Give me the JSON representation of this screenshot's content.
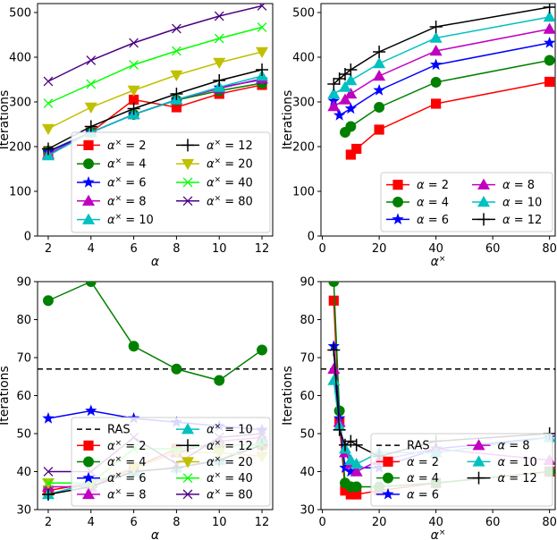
{
  "colors": {
    "red": "#ff0000",
    "green": "#008000",
    "blue": "#0000ff",
    "magenta": "#c000c0",
    "cyan": "#00c0c0",
    "black": "#000000",
    "olive": "#c0c000",
    "lime": "#00ff00",
    "indigo": "#4b0082"
  },
  "chart_data": [
    {
      "type": "line",
      "xlabel": "α",
      "ylabel": "Iterations",
      "xlim": [
        1.5,
        12.5
      ],
      "ylim": [
        0,
        520
      ],
      "xticks": [
        2,
        4,
        6,
        8,
        10,
        12
      ],
      "yticks": [
        0,
        100,
        200,
        300,
        400,
        500
      ],
      "x": [
        2,
        4,
        6,
        8,
        10,
        12
      ],
      "legend": {
        "position": "lower-right",
        "ncol": 2
      },
      "series": [
        {
          "name": "α× = 2",
          "color": "red",
          "marker": "square",
          "values": [
            190,
            232,
            305,
            288,
            318,
            338
          ]
        },
        {
          "name": "α× = 4",
          "color": "green",
          "marker": "circle",
          "values": [
            190,
            232,
            272,
            304,
            325,
            342
          ]
        },
        {
          "name": "α× = 6",
          "color": "blue",
          "marker": "star",
          "values": [
            188,
            232,
            272,
            305,
            332,
            350
          ]
        },
        {
          "name": "α× = 8",
          "color": "magenta",
          "marker": "triangle-up",
          "values": [
            183,
            232,
            272,
            305,
            330,
            352
          ]
        },
        {
          "name": "α× = 10",
          "color": "cyan",
          "marker": "triangle-up",
          "values": [
            180,
            232,
            272,
            305,
            333,
            358
          ]
        },
        {
          "name": "α× = 12",
          "color": "black",
          "marker": "plus",
          "values": [
            195,
            245,
            285,
            318,
            348,
            372
          ]
        },
        {
          "name": "α× = 20",
          "color": "olive",
          "marker": "triangle-down",
          "values": [
            240,
            288,
            326,
            360,
            388,
            412
          ]
        },
        {
          "name": "α× = 40",
          "color": "lime",
          "marker": "x",
          "values": [
            297,
            340,
            383,
            414,
            442,
            467
          ]
        },
        {
          "name": "α× = 80",
          "color": "indigo",
          "marker": "x",
          "values": [
            346,
            393,
            432,
            464,
            492,
            515
          ]
        }
      ]
    },
    {
      "type": "line",
      "xlabel": "α×",
      "ylabel": "Iterations",
      "xlim": [
        -0.5,
        82
      ],
      "ylim": [
        0,
        520
      ],
      "xticks": [
        0,
        20,
        40,
        60,
        80
      ],
      "yticks": [
        0,
        100,
        200,
        300,
        400,
        500
      ],
      "x": [
        4,
        6,
        8,
        10,
        12,
        20,
        40,
        80
      ],
      "legend": {
        "position": "lower-right",
        "ncol": 2
      },
      "series": [
        {
          "name": "α = 2",
          "color": "red",
          "marker": "square",
          "values": [
            null,
            null,
            null,
            182,
            195,
            238,
            296,
            345
          ]
        },
        {
          "name": "α = 4",
          "color": "green",
          "marker": "circle",
          "values": [
            null,
            null,
            232,
            245,
            null,
            288,
            344,
            393
          ]
        },
        {
          "name": "α = 6",
          "color": "blue",
          "marker": "star",
          "values": [
            302,
            270,
            null,
            285,
            null,
            326,
            383,
            432
          ]
        },
        {
          "name": "α = 8",
          "color": "magenta",
          "marker": "triangle-up",
          "values": [
            290,
            null,
            305,
            318,
            null,
            358,
            414,
            463
          ]
        },
        {
          "name": "α = 10",
          "color": "cyan",
          "marker": "triangle-up",
          "values": [
            318,
            null,
            333,
            348,
            null,
            386,
            443,
            490
          ]
        },
        {
          "name": "α = 12",
          "color": "black",
          "marker": "plus",
          "values": [
            340,
            352,
            362,
            372,
            null,
            412,
            468,
            512
          ]
        }
      ]
    },
    {
      "type": "line",
      "xlabel": "α",
      "ylabel": "Iterations",
      "xlim": [
        1.5,
        12.5
      ],
      "ylim": [
        30,
        90
      ],
      "xticks": [
        2,
        4,
        6,
        8,
        10,
        12
      ],
      "yticks": [
        30,
        40,
        50,
        60,
        70,
        80,
        90
      ],
      "x": [
        2,
        4,
        6,
        8,
        10,
        12
      ],
      "reference": {
        "name": "RAS",
        "value": 67
      },
      "legend": {
        "position": "lower-right",
        "ncol": 2
      },
      "series": [
        {
          "name": "α× = 2",
          "color": "red",
          "marker": "square",
          "values": [
            35,
            37,
            41,
            46,
            47,
            47
          ]
        },
        {
          "name": "α× = 4",
          "color": "green",
          "marker": "circle",
          "values": [
            85,
            90,
            73,
            67,
            64,
            72
          ]
        },
        {
          "name": "α× = 6",
          "color": "blue",
          "marker": "star",
          "values": [
            54,
            56,
            54,
            53,
            52,
            51
          ]
        },
        {
          "name": "α× = 8",
          "color": "magenta",
          "marker": "triangle-up",
          "values": [
            36,
            36,
            41,
            45,
            48,
            49
          ]
        },
        {
          "name": "α× = 10",
          "color": "cyan",
          "marker": "triangle-up",
          "values": [
            34,
            37,
            40,
            41,
            43,
            48
          ]
        },
        {
          "name": "α× = 12",
          "color": "black",
          "marker": "plus",
          "values": [
            34,
            36,
            40,
            41,
            43,
            47
          ]
        },
        {
          "name": "α× = 20",
          "color": "olive",
          "marker": "triangle-down",
          "values": [
            37,
            37,
            41,
            45,
            45,
            44
          ]
        },
        {
          "name": "α× = 40",
          "color": "lime",
          "marker": "x",
          "values": [
            37,
            37,
            46,
            46,
            47,
            47
          ]
        },
        {
          "name": "α× = 80",
          "color": "indigo",
          "marker": "x",
          "values": [
            40,
            40,
            49,
            42,
            49,
            50
          ]
        }
      ]
    },
    {
      "type": "line",
      "xlabel": "α×",
      "ylabel": "Iterations",
      "xlim": [
        -0.5,
        82
      ],
      "ylim": [
        30,
        90
      ],
      "xticks": [
        0,
        20,
        40,
        60,
        80
      ],
      "yticks": [
        30,
        40,
        50,
        60,
        70,
        80,
        90
      ],
      "x": [
        4,
        6,
        8,
        10,
        12,
        20,
        40,
        80
      ],
      "reference": {
        "name": "RAS",
        "value": 67
      },
      "legend": {
        "position": "lower-right",
        "ncol": 2
      },
      "series": [
        {
          "name": "α = 2",
          "color": "red",
          "marker": "square",
          "values": [
            85,
            53,
            35,
            34,
            34,
            35,
            37,
            40
          ]
        },
        {
          "name": "α = 4",
          "color": "green",
          "marker": "circle",
          "values": [
            90,
            56,
            37,
            36,
            36,
            36,
            37,
            40
          ]
        },
        {
          "name": "α = 6",
          "color": "blue",
          "marker": "star",
          "values": [
            73,
            54,
            41,
            40,
            41,
            41,
            46,
            49
          ]
        },
        {
          "name": "α = 8",
          "color": "magenta",
          "marker": "triangle-up",
          "values": [
            67,
            53,
            45,
            42,
            40,
            43,
            46,
            43
          ]
        },
        {
          "name": "α = 10",
          "color": "cyan",
          "marker": "triangle-up",
          "values": [
            64,
            52,
            46,
            43,
            42,
            45,
            45,
            49
          ]
        },
        {
          "name": "α = 12",
          "color": "black",
          "marker": "plus",
          "values": [
            72,
            51,
            47,
            48,
            47,
            44,
            48,
            50
          ]
        }
      ]
    }
  ]
}
